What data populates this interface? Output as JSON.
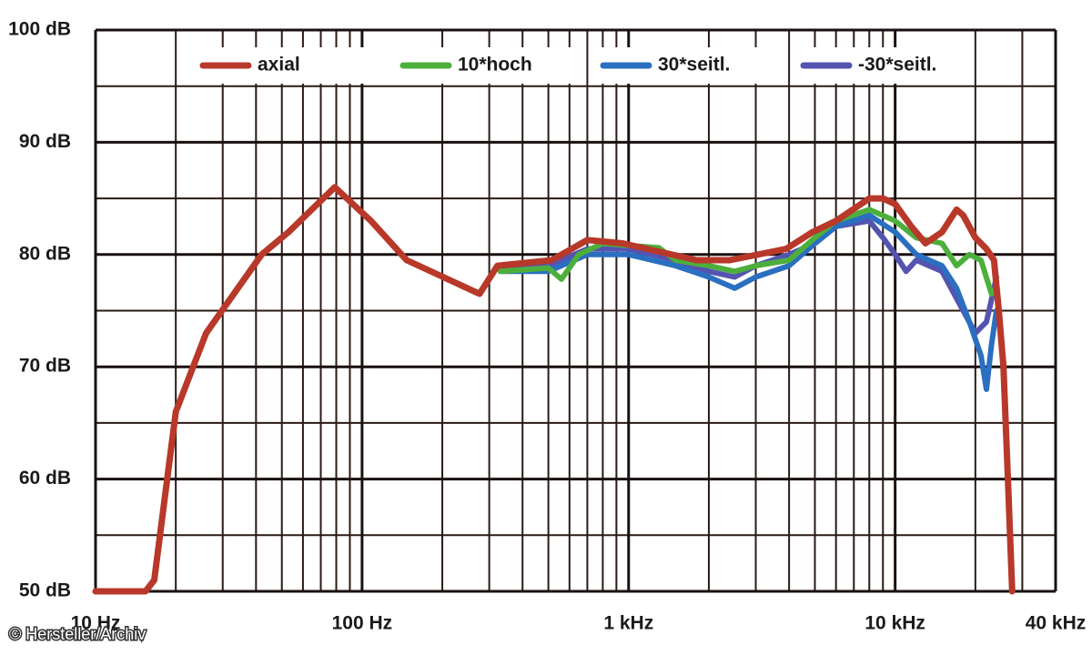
{
  "chart_data": {
    "type": "line",
    "log_x": true,
    "grid": true,
    "legend": "top",
    "xlim": [
      10,
      40000
    ],
    "ylim": [
      50,
      100
    ],
    "xticks": [
      {
        "value": 10,
        "label": "10 Hz"
      },
      {
        "value": 100,
        "label": "100 Hz"
      },
      {
        "value": 1000,
        "label": "1 kHz"
      },
      {
        "value": 10000,
        "label": "10 kHz"
      },
      {
        "value": 40000,
        "label": "40 kHz"
      }
    ],
    "xminorticks": [
      20,
      30,
      40,
      50,
      60,
      70,
      80,
      90,
      200,
      300,
      400,
      500,
      600,
      700,
      800,
      900,
      2000,
      3000,
      4000,
      5000,
      6000,
      7000,
      8000,
      9000,
      20000,
      30000
    ],
    "yticks": [
      {
        "value": 50,
        "label": "50 dB"
      },
      {
        "value": 60,
        "label": "60 dB"
      },
      {
        "value": 70,
        "label": "70 dB"
      },
      {
        "value": 80,
        "label": "80 dB"
      },
      {
        "value": 90,
        "label": "90 dB"
      },
      {
        "value": 100,
        "label": "100 dB"
      }
    ],
    "yminorticks": [
      55,
      65,
      75,
      85,
      95
    ],
    "annotation": "© Hersteller/Archiv",
    "series": [
      {
        "name": "axial",
        "color": "#b8382a",
        "x": [
          10,
          15.4,
          16.6,
          20,
          26,
          42,
          53,
          79,
          108,
          147,
          276,
          322,
          514,
          700,
          950,
          1800,
          2400,
          3900,
          4900,
          6000,
          8000,
          9000,
          10000,
          11500,
          13000,
          15000,
          17000,
          18000,
          20000,
          22000,
          23500,
          24500,
          25500,
          26500,
          27500
        ],
        "values": [
          50,
          50,
          51,
          66,
          73,
          80,
          82,
          86,
          83,
          79.5,
          76.5,
          79,
          79.5,
          81.3,
          81,
          79.5,
          79.5,
          80.5,
          82,
          83,
          85,
          85,
          84.5,
          82.5,
          81,
          82,
          84,
          83.5,
          81.5,
          80.5,
          79.5,
          75,
          70,
          60,
          50
        ]
      },
      {
        "name": "10*hoch",
        "color": "#4caf3c",
        "x": [
          330,
          500,
          560,
          650,
          800,
          1000,
          1300,
          1500,
          2000,
          2500,
          3000,
          4000,
          5000,
          6000,
          8000,
          10000,
          12000,
          15000,
          17000,
          19000,
          21000,
          23000,
          24000
        ],
        "values": [
          78.5,
          78.8,
          77.8,
          80,
          81,
          80.8,
          80.6,
          79.5,
          79,
          78.5,
          79,
          79.5,
          81.5,
          83,
          84,
          83,
          81.5,
          81,
          79,
          80,
          79.5,
          76.5,
          77
        ]
      },
      {
        "name": "30*seitl.",
        "color": "#2a6fc0",
        "x": [
          330,
          500,
          700,
          1000,
          1500,
          2000,
          2500,
          3000,
          4000,
          5000,
          6000,
          8000,
          10000,
          12000,
          15000,
          17000,
          19000,
          21000,
          22000,
          23000,
          24000
        ],
        "values": [
          78.5,
          78.5,
          80,
          80,
          79,
          78,
          77,
          78,
          79,
          81,
          82.5,
          83.5,
          82,
          80,
          79,
          77,
          74,
          71,
          68,
          72,
          75
        ]
      },
      {
        "name": "-30*seitl.",
        "color": "#5454b0",
        "x": [
          330,
          500,
          700,
          1000,
          1500,
          2000,
          2500,
          3000,
          4000,
          5000,
          6000,
          8000,
          9000,
          10000,
          11000,
          12000,
          15000,
          18000,
          20000,
          22000,
          23000,
          24000
        ],
        "values": [
          79,
          79,
          80.5,
          80.5,
          79.5,
          78.5,
          78,
          79,
          80,
          81,
          82.5,
          83,
          81.5,
          80,
          78.5,
          79.5,
          78.5,
          75,
          73,
          74,
          76,
          78
        ]
      }
    ]
  }
}
